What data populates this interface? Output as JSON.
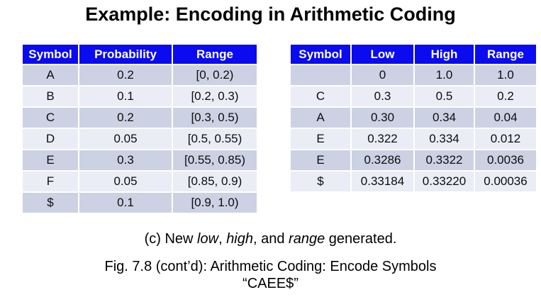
{
  "title": "Example: Encoding in Arithmetic Coding",
  "colors": {
    "header_bg": "#0b0bef",
    "header_text": "#ffffff",
    "row_dark": "#ccd2e4",
    "row_light": "#eaedf5",
    "page_bg": "#ffffff"
  },
  "prob_table": {
    "headers": [
      "Symbol",
      "Probability",
      "Range"
    ],
    "rows": [
      [
        "A",
        "0.2",
        "[0, 0.2)"
      ],
      [
        "B",
        "0.1",
        "[0.2, 0.3)"
      ],
      [
        "C",
        "0.2",
        "[0.3, 0.5)"
      ],
      [
        "D",
        "0.05",
        "[0.5, 0.55)"
      ],
      [
        "E",
        "0.3",
        "[0.55, 0.85)"
      ],
      [
        "F",
        "0.05",
        "[0.85, 0.9)"
      ],
      [
        "$",
        "0.1",
        "[0.9, 1.0)"
      ]
    ]
  },
  "encode_table": {
    "headers": [
      "Symbol",
      "Low",
      "High",
      "Range"
    ],
    "rows": [
      [
        "",
        "0",
        "1.0",
        "1.0"
      ],
      [
        "C",
        "0.3",
        "0.5",
        "0.2"
      ],
      [
        "A",
        "0.30",
        "0.34",
        "0.04"
      ],
      [
        "E",
        "0.322",
        "0.334",
        "0.012"
      ],
      [
        "E",
        "0.3286",
        "0.3322",
        "0.0036"
      ],
      [
        "$",
        "0.33184",
        "0.33220",
        "0.00036"
      ]
    ]
  },
  "caption": {
    "part1": "(c) New ",
    "word1": "low",
    "part2": ", ",
    "word2": "high",
    "part3": ", and ",
    "word3": "range",
    "part4": " generated."
  },
  "figure_caption": {
    "line1": "Fig. 7.8 (cont’d): Arithmetic Coding: Encode Symbols",
    "line2": "“CAEE$”"
  }
}
